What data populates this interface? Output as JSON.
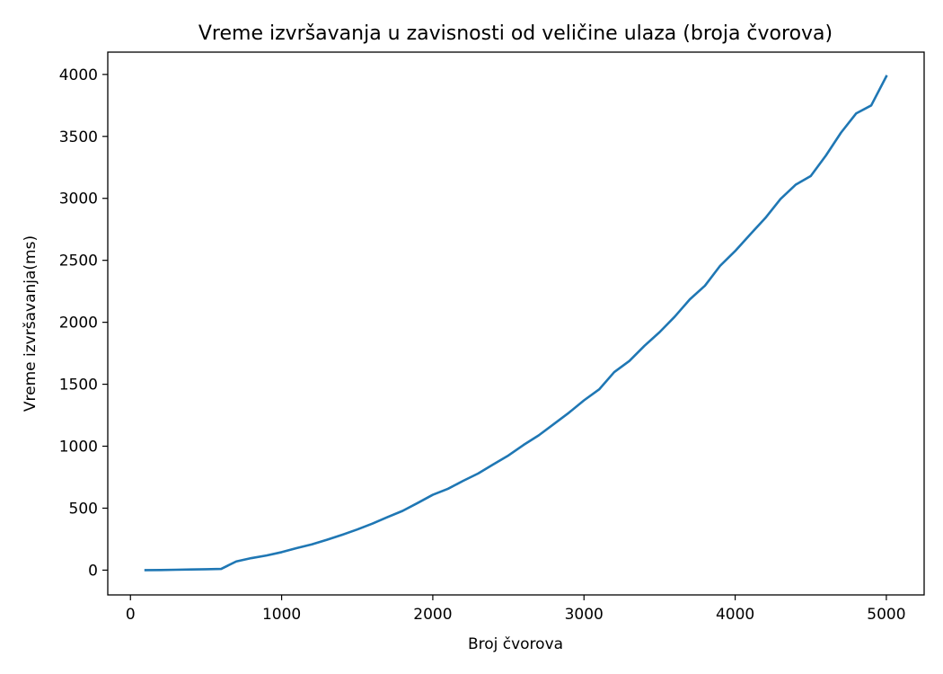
{
  "chart_data": {
    "type": "line",
    "title": "Vreme izvršavanja u zavisnosti od veličine ulaza (broja čvorova)",
    "xlabel": "Broj čvorova",
    "ylabel": "Vreme izvršavanja(ms)",
    "xlim": [
      -150,
      5250
    ],
    "ylim": [
      -200,
      4180
    ],
    "xticks": [
      0,
      1000,
      2000,
      3000,
      4000,
      5000
    ],
    "yticks": [
      0,
      500,
      1000,
      1500,
      2000,
      2500,
      3000,
      3500,
      4000
    ],
    "grid": false,
    "legend": "none",
    "series": [
      {
        "color": "#1f77b4",
        "x": [
          100,
          200,
          300,
          400,
          500,
          600,
          700,
          800,
          900,
          1000,
          1100,
          1200,
          1300,
          1400,
          1500,
          1600,
          1700,
          1800,
          1900,
          2000,
          2100,
          2200,
          2300,
          2400,
          2500,
          2600,
          2700,
          2800,
          2900,
          3000,
          3100,
          3200,
          3300,
          3400,
          3500,
          3600,
          3700,
          3800,
          3900,
          4000,
          4100,
          4200,
          4300,
          4400,
          4500,
          4600,
          4700,
          4800,
          4900,
          5000
        ],
        "y": [
          0,
          1,
          3,
          5,
          7,
          10,
          70,
          97,
          118,
          145,
          178,
          208,
          245,
          285,
          328,
          375,
          428,
          478,
          542,
          608,
          656,
          720,
          780,
          853,
          925,
          1010,
          1087,
          1178,
          1270,
          1370,
          1458,
          1598,
          1688,
          1810,
          1920,
          2045,
          2185,
          2295,
          2455,
          2575,
          2710,
          2842,
          2995,
          3110,
          3180,
          3345,
          3530,
          3685,
          3750,
          3985
        ]
      }
    ]
  }
}
